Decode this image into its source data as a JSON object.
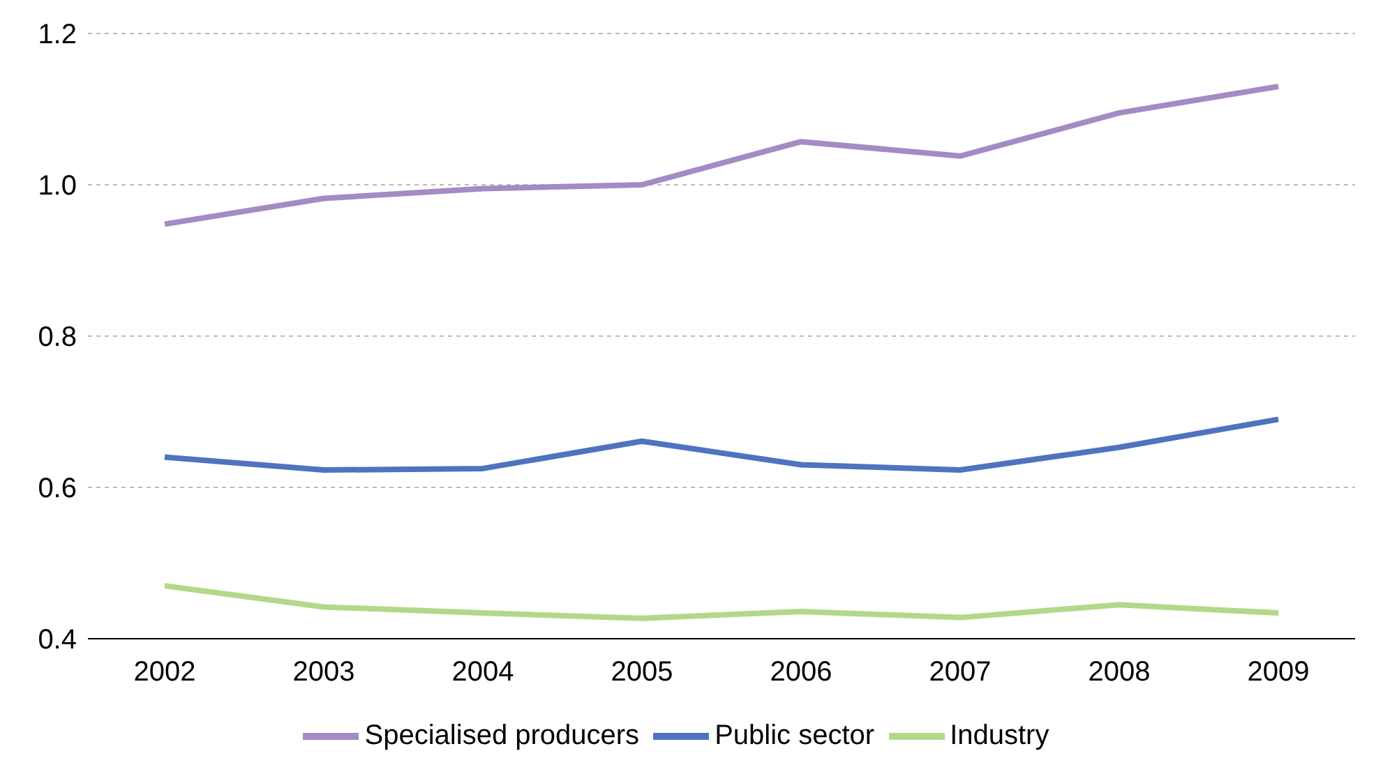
{
  "chart_data": {
    "type": "line",
    "categories": [
      "2002",
      "2003",
      "2004",
      "2005",
      "2006",
      "2007",
      "2008",
      "2009"
    ],
    "series": [
      {
        "name": "Specialised producers",
        "color": "#a48bc4",
        "values": [
          0.948,
          0.982,
          0.995,
          1.0,
          1.057,
          1.038,
          1.095,
          1.13
        ]
      },
      {
        "name": "Public sector",
        "color": "#4f73be",
        "values": [
          0.64,
          0.623,
          0.625,
          0.661,
          0.63,
          0.623,
          0.653,
          0.69
        ]
      },
      {
        "name": "Industry",
        "color": "#b3d88a",
        "values": [
          0.47,
          0.442,
          0.434,
          0.427,
          0.436,
          0.428,
          0.445,
          0.434
        ]
      }
    ],
    "ylim": [
      0.4,
      1.2
    ],
    "yticks": [
      {
        "value": 0.4,
        "label": "0.4"
      },
      {
        "value": 0.6,
        "label": "0.6"
      },
      {
        "value": 0.8,
        "label": "0.8"
      },
      {
        "value": 1.0,
        "label": "1.0"
      },
      {
        "value": 1.2,
        "label": "1.2"
      }
    ],
    "grid": "y",
    "legend": "bottom",
    "marker": "none",
    "line_style": "solid"
  }
}
